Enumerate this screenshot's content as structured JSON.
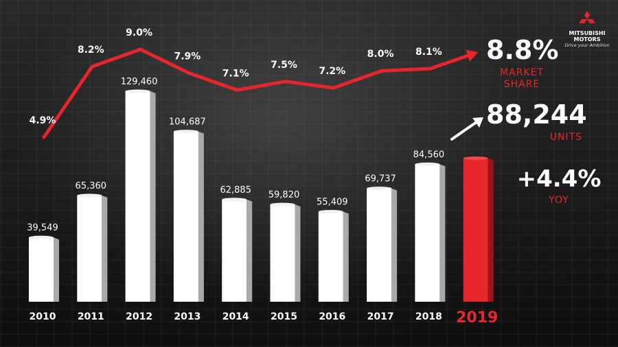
{
  "brand": {
    "name_line1": "MITSUBISHI",
    "name_line2": "MOTORS",
    "tagline": "Drive your Ambition",
    "logo_color": "#e6262c"
  },
  "kpis": {
    "market_share": {
      "value": "8.8%",
      "label_line1": "MARKET",
      "label_line2": "SHARE"
    },
    "units": {
      "value": "88,244",
      "label": "UNITS"
    },
    "yoy": {
      "value": "+4.4%",
      "label": "YOY"
    }
  },
  "colors": {
    "bar": "#ffffff",
    "bar_side": "#a9a9a9",
    "highlight_bar": "#e6262c",
    "highlight_side": "#9e1116",
    "line": "#e6262c",
    "accent_text": "#e6262c"
  },
  "chart_data": {
    "type": "bar",
    "categories": [
      "2010",
      "2011",
      "2012",
      "2013",
      "2014",
      "2015",
      "2016",
      "2017",
      "2018",
      "2019"
    ],
    "series": [
      {
        "values": [
          39549,
          65360,
          129460,
          104687,
          62885,
          59820,
          55409,
          69737,
          84560,
          88244
        ],
        "value_labels": [
          "39,549",
          "65,360",
          "129,460",
          "104,687",
          "62,885",
          "59,820",
          "55,409",
          "69,737",
          "84,560",
          null
        ]
      },
      {
        "type": "line",
        "values": [
          4.9,
          8.2,
          9.0,
          7.9,
          7.1,
          7.5,
          7.2,
          8.0,
          8.1,
          8.8
        ],
        "value_labels": [
          "4.9%",
          "8.2%",
          "9.0%",
          "7.9%",
          "7.1%",
          "7.5%",
          "7.2%",
          "8.0%",
          "8.1%",
          null
        ]
      }
    ],
    "highlight_category": "2019",
    "ylim": [
      0,
      140000
    ],
    "title": "",
    "xlabel": "",
    "ylabel": "",
    "grid": false,
    "legend": "none"
  }
}
